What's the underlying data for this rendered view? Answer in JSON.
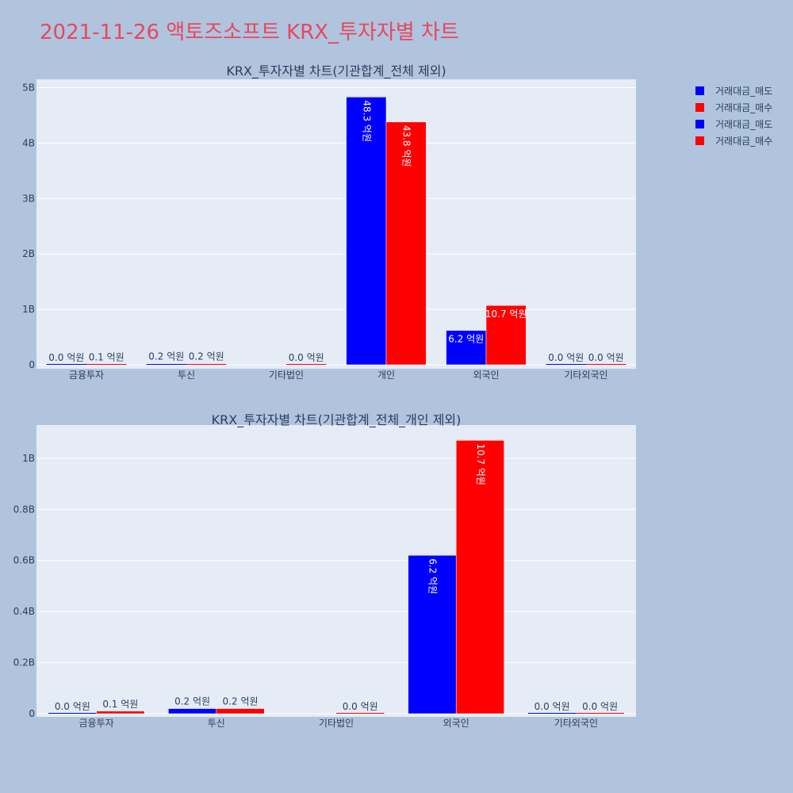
{
  "title": "2021-11-26 액토즈소프트 KRX_투자자별 차트",
  "colors": {
    "sell": "#0000ff",
    "buy": "#ff0000",
    "title": "#e8475f",
    "plot_bg": "#e5ecf6",
    "page_bg": "#b0c4de"
  },
  "legend": [
    {
      "name": "거래대금_매도",
      "color": "#0000ff"
    },
    {
      "name": "거래대금_매수",
      "color": "#ff0000"
    },
    {
      "name": "거래대금_매도",
      "color": "#0000ff"
    },
    {
      "name": "거래대금_매수",
      "color": "#ff0000"
    }
  ],
  "chart_data": [
    {
      "type": "bar",
      "title": "KRX_투자자별 차트(기관합계_전체 제외)",
      "categories": [
        "금융투자",
        "투신",
        "기타법인",
        "개인",
        "외국인",
        "기타외국인"
      ],
      "series": [
        {
          "name": "거래대금_매도",
          "color": "#0000ff",
          "values": [
            0,
            20000000,
            null,
            4830000000,
            620000000,
            0
          ],
          "labels": [
            "0.0 억원",
            "0.2 억원",
            null,
            "48.3 억원",
            "6.2 억원",
            "0.0 억원"
          ]
        },
        {
          "name": "거래대금_매수",
          "color": "#ff0000",
          "values": [
            10000000,
            20000000,
            0,
            4380000000,
            1070000000,
            0
          ],
          "labels": [
            "0.1 억원",
            "0.2 억원",
            "0.0 억원",
            "43.8 억원",
            "10.7 억원",
            "0.0 억원"
          ]
        }
      ],
      "ylim": [
        0,
        5150000000
      ],
      "yticks": [
        {
          "value": 0,
          "label": "0"
        },
        {
          "value": 1000000000,
          "label": "1B"
        },
        {
          "value": 2000000000,
          "label": "2B"
        },
        {
          "value": 3000000000,
          "label": "3B"
        },
        {
          "value": 4000000000,
          "label": "4B"
        },
        {
          "value": 5000000000,
          "label": "5B"
        }
      ],
      "grid": true
    },
    {
      "type": "bar",
      "title": "KRX_투자자별 차트(기관합계_전체_개인 제외)",
      "categories": [
        "금융투자",
        "투신",
        "기타법인",
        "외국인",
        "기타외국인"
      ],
      "series": [
        {
          "name": "거래대금_매도",
          "color": "#0000ff",
          "values": [
            0,
            20000000,
            null,
            620000000,
            0
          ],
          "labels": [
            "0.0 억원",
            "0.2 억원",
            null,
            "6.2 억원",
            "0.0 억원"
          ]
        },
        {
          "name": "거래대금_매수",
          "color": "#ff0000",
          "values": [
            10000000,
            20000000,
            0,
            1070000000,
            0
          ],
          "labels": [
            "0.1 억원",
            "0.2 억원",
            "0.0 억원",
            "10.7 억원",
            "0.0 억원"
          ]
        }
      ],
      "ylim": [
        0,
        1130000000
      ],
      "yticks": [
        {
          "value": 0,
          "label": "0"
        },
        {
          "value": 200000000,
          "label": "0.2B"
        },
        {
          "value": 400000000,
          "label": "0.4B"
        },
        {
          "value": 600000000,
          "label": "0.6B"
        },
        {
          "value": 800000000,
          "label": "0.8B"
        },
        {
          "value": 1000000000,
          "label": "1B"
        }
      ],
      "grid": true
    }
  ]
}
